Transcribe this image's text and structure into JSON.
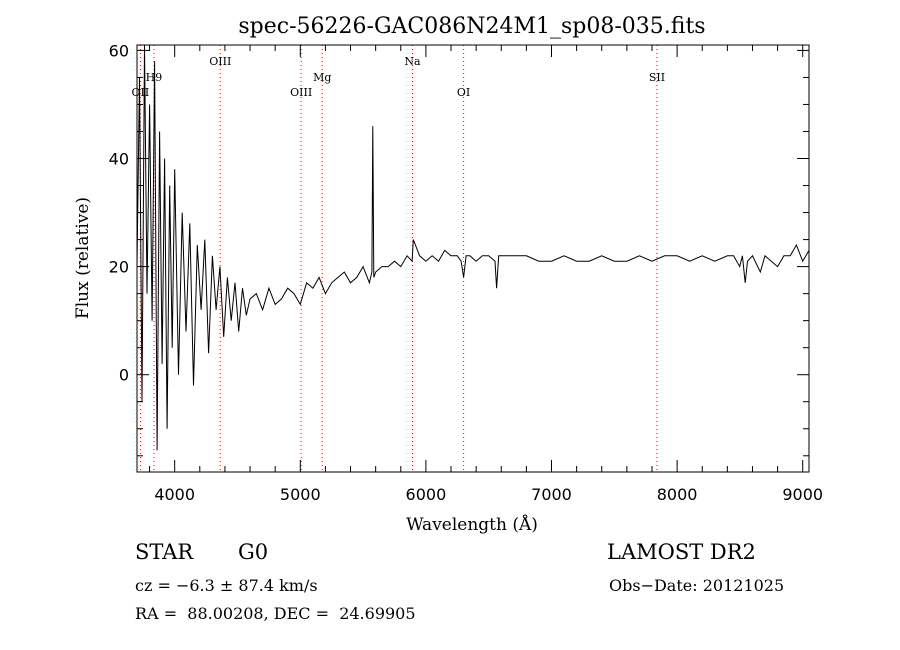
{
  "chart_data": {
    "type": "line",
    "title": "spec-56226-GAC086N24M1_sp08-035.fits",
    "xlabel": "Wavelength (Å)",
    "ylabel": "Flux (relative)",
    "xlim": [
      3700,
      9050
    ],
    "ylim": [
      -18,
      61
    ],
    "x_ticks": [
      "4000",
      "5000",
      "6000",
      "7000",
      "8000",
      "9000"
    ],
    "y_ticks": [
      "0",
      "20",
      "40",
      "60"
    ],
    "x_tick_values": [
      4000,
      5000,
      6000,
      7000,
      8000,
      9000
    ],
    "y_tick_values": [
      0,
      20,
      40,
      60
    ],
    "grid": false,
    "line_markers": [
      {
        "label": "OII",
        "x": 3727
      },
      {
        "label": "H9",
        "x": 3835
      },
      {
        "label": "OIII",
        "x": 4363
      },
      {
        "label": "OIII",
        "x": 5007
      },
      {
        "label": "Mg",
        "x": 5175
      },
      {
        "label": "Na",
        "x": 5893
      },
      {
        "label": "OI",
        "x": 6300
      },
      {
        "label": "SII",
        "x": 7840
      }
    ],
    "series": [
      {
        "x": [
          3700,
          3720,
          3740,
          3760,
          3780,
          3800,
          3820,
          3840,
          3860,
          3880,
          3900,
          3920,
          3940,
          3960,
          3980,
          4000,
          4030,
          4060,
          4090,
          4120,
          4150,
          4180,
          4210,
          4240,
          4270,
          4300,
          4330,
          4360,
          4390,
          4420,
          4450,
          4480,
          4510,
          4540,
          4570,
          4600,
          4650,
          4700,
          4750,
          4800,
          4850,
          4900,
          4950,
          5000,
          5050,
          5100,
          5150,
          5200,
          5250,
          5300,
          5350,
          5400,
          5450,
          5500,
          5550,
          5570,
          5577,
          5585,
          5600,
          5650,
          5700,
          5750,
          5800,
          5850,
          5890,
          5900,
          5950,
          6000,
          6050,
          6100,
          6150,
          6200,
          6250,
          6280,
          6300,
          6320,
          6350,
          6400,
          6450,
          6500,
          6550,
          6563,
          6580,
          6600,
          6700,
          6800,
          6900,
          7000,
          7100,
          7200,
          7300,
          7400,
          7500,
          7600,
          7700,
          7800,
          7900,
          8000,
          8100,
          8200,
          8300,
          8400,
          8450,
          8498,
          8520,
          8542,
          8560,
          8600,
          8662,
          8700,
          8750,
          8800,
          8850,
          8900,
          8950,
          9000,
          9050
        ],
        "y": [
          20,
          55,
          -5,
          62,
          15,
          50,
          10,
          58,
          -14,
          45,
          2,
          40,
          -10,
          35,
          5,
          38,
          0,
          30,
          8,
          28,
          -2,
          24,
          12,
          25,
          4,
          22,
          12,
          20,
          7,
          18,
          10,
          17,
          8,
          16,
          11,
          14,
          15,
          12,
          16,
          13,
          14,
          16,
          15,
          13,
          17,
          16,
          18,
          15,
          17,
          18,
          19,
          17,
          18,
          20,
          17,
          19,
          46,
          18,
          19,
          20,
          20,
          21,
          20,
          22,
          21,
          25,
          22,
          21,
          22,
          21,
          23,
          22,
          22,
          21,
          18,
          22,
          22,
          21,
          22,
          22,
          21,
          16,
          22,
          22,
          22,
          22,
          21,
          21,
          22,
          21,
          21,
          22,
          21,
          21,
          22,
          21,
          22,
          22,
          21,
          22,
          21,
          22,
          22,
          20,
          22,
          17,
          21,
          22,
          19,
          22,
          21,
          20,
          22,
          22,
          24,
          21,
          23
        ]
      }
    ]
  },
  "info": {
    "object_class": "STAR",
    "object_subclass": "G0",
    "survey": "LAMOST DR2",
    "cz": "cz = −6.3 ± 87.4 km/s",
    "obs_date": "Obs−Date: 20121025",
    "radec": "RA =  88.00208, DEC =  24.69905"
  },
  "colors": {
    "spectrum": "#000000",
    "marker_line": "#ff0000"
  }
}
